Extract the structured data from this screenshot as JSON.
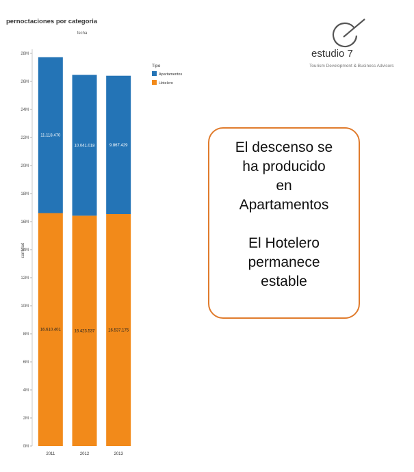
{
  "chart_data": {
    "type": "bar",
    "stacked": true,
    "title": "pernoctaciones por categoria",
    "subtitle": "fecha",
    "ylabel": "cantidad",
    "xlabel": "",
    "categories": [
      "2011",
      "2012",
      "2013"
    ],
    "ylim": [
      0,
      28000000
    ],
    "yticks": [
      0,
      2000000,
      4000000,
      6000000,
      8000000,
      10000000,
      12000000,
      14000000,
      16000000,
      18000000,
      20000000,
      22000000,
      24000000,
      26000000,
      28000000
    ],
    "ytick_labels": [
      "0M",
      "2M",
      "4M",
      "6M",
      "8M",
      "10M",
      "12M",
      "14M",
      "16M",
      "18M",
      "20M",
      "22M",
      "24M",
      "26M",
      "28M"
    ],
    "legend": {
      "title": "Tipo",
      "position": "right"
    },
    "grid": false,
    "series": [
      {
        "name": "Hotelero",
        "color": "#f28a1a",
        "values": [
          16610401,
          16423537,
          16537175
        ],
        "labels": [
          "16.610.401",
          "16.423.537",
          "16.537.175"
        ]
      },
      {
        "name": "Apartamentos",
        "color": "#2474b6",
        "values": [
          11118470,
          10041018,
          9867429
        ],
        "labels": [
          "11.118.470",
          "10.041.018",
          "9.867.429"
        ]
      }
    ]
  },
  "logo": {
    "name": "estudio 7",
    "tagline": "Tourism Development & Business Advisors",
    "icon": "e-circle-logo-icon"
  },
  "callout": {
    "paragraph1": [
      "El descenso  se",
      "ha producido",
      "en",
      "Apartamentos"
    ],
    "paragraph2": [
      "El Hotelero",
      "permanece",
      "estable"
    ]
  }
}
